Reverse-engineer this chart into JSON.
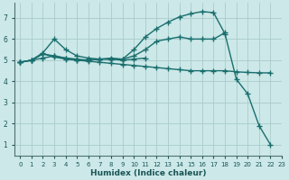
{
  "xlabel": "Humidex (Indice chaleur)",
  "xlim": [
    -0.5,
    23
  ],
  "ylim": [
    0.5,
    7.7
  ],
  "yticks": [
    1,
    2,
    3,
    4,
    5,
    6,
    7
  ],
  "xticks": [
    0,
    1,
    2,
    3,
    4,
    5,
    6,
    7,
    8,
    9,
    10,
    11,
    12,
    13,
    14,
    15,
    16,
    17,
    18,
    19,
    20,
    21,
    22,
    23
  ],
  "bg_color": "#cce8e8",
  "grid_color": "#aacccc",
  "line_color": "#1a6e6e",
  "line_width": 1.0,
  "marker": "+",
  "markersize": 4,
  "markeredgewidth": 1.0,
  "lines": [
    {
      "x": [
        0,
        1,
        2,
        3,
        4,
        5,
        6,
        7,
        8,
        9,
        10,
        11,
        12,
        13,
        14,
        15,
        16,
        17,
        18,
        19,
        20,
        21,
        22
      ],
      "y": [
        4.9,
        5.0,
        5.3,
        5.2,
        5.1,
        5.05,
        5.0,
        5.05,
        5.1,
        5.05,
        5.5,
        6.1,
        6.5,
        6.8,
        7.05,
        7.2,
        7.3,
        7.25,
        6.25,
        4.1,
        3.4,
        1.9,
        1.0
      ]
    },
    {
      "x": [
        0,
        1,
        2,
        3,
        4,
        5,
        6,
        7,
        8,
        9,
        10,
        11,
        12,
        13,
        14,
        15,
        16,
        17,
        18
      ],
      "y": [
        4.9,
        5.0,
        5.3,
        5.15,
        5.05,
        5.0,
        5.0,
        5.05,
        5.05,
        5.05,
        5.2,
        5.5,
        5.9,
        6.0,
        6.1,
        6.0,
        6.0,
        6.0,
        6.3
      ]
    },
    {
      "x": [
        0,
        1,
        2,
        3,
        4,
        5,
        6,
        7,
        8,
        9,
        10,
        11
      ],
      "y": [
        4.9,
        5.0,
        5.35,
        6.0,
        5.5,
        5.2,
        5.1,
        5.05,
        5.05,
        5.0,
        5.05,
        5.1
      ]
    },
    {
      "x": [
        0,
        1,
        2,
        3,
        4,
        5,
        6,
        7,
        8,
        9,
        10,
        11,
        12,
        13,
        14,
        15,
        16,
        17,
        18,
        19,
        20,
        21,
        22
      ],
      "y": [
        4.9,
        5.0,
        5.1,
        5.2,
        5.1,
        5.0,
        4.95,
        4.9,
        4.85,
        4.8,
        4.75,
        4.7,
        4.65,
        4.6,
        4.55,
        4.5,
        4.5,
        4.5,
        4.5,
        4.45,
        4.42,
        4.4,
        4.4
      ]
    }
  ]
}
